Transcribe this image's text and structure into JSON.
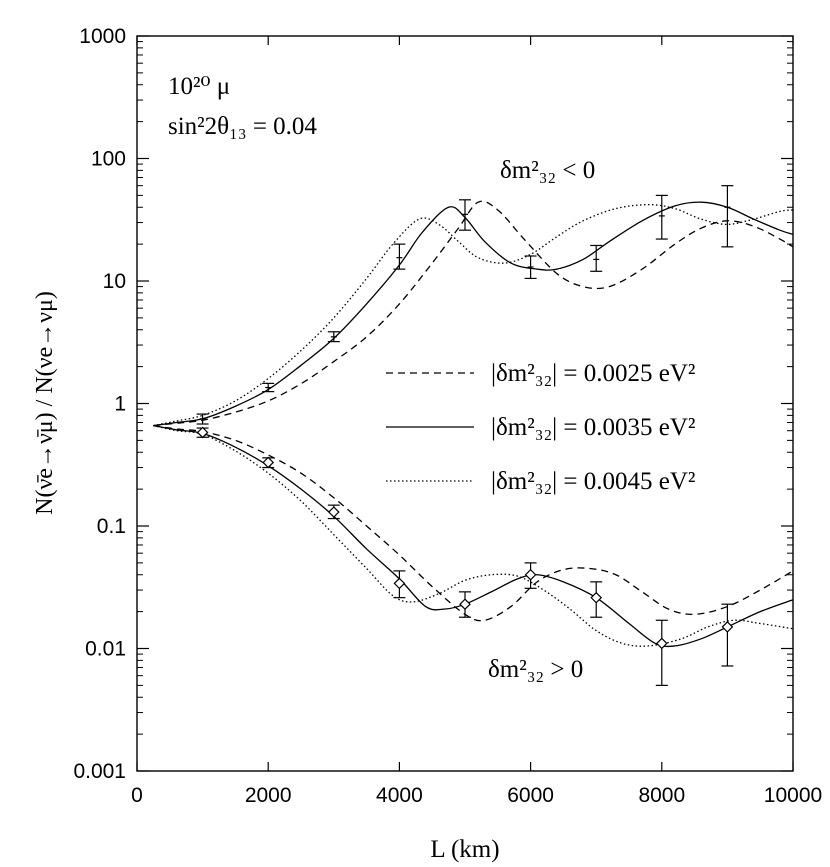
{
  "chart_data": {
    "type": "line",
    "xlabel": "L (km)",
    "ylabel": "N(ν̄e→ν̄μ) / N(νe→νμ)",
    "xlim": [
      0,
      10000
    ],
    "ylim": [
      0.001,
      1000
    ],
    "yscale": "log",
    "x_ticks": [
      0,
      2000,
      4000,
      6000,
      8000,
      10000
    ],
    "x_tick_labels": [
      "0",
      "2000",
      "4000",
      "6000",
      "8000",
      "10000"
    ],
    "y_ticks": [
      0.001,
      0.01,
      0.1,
      1,
      10,
      100,
      1000
    ],
    "y_tick_labels": [
      "0.001",
      "0.01",
      "0.1",
      "1",
      "10",
      "100",
      "1000"
    ],
    "annotations": {
      "muons": "10²⁰ μ",
      "mixing": "sin²2θ₁₃ = 0.04",
      "negative_hierarchy": "δm²₃₂ < 0",
      "positive_hierarchy": "δm²₃₂ > 0"
    },
    "legend": {
      "position": "center-right",
      "entries": [
        {
          "label": "|δm²₃₂| = 0.0025 eV²",
          "style": "dashed"
        },
        {
          "label": "|δm²₃₂| = 0.0035 eV²",
          "style": "solid"
        },
        {
          "label": "|δm²₃₂| = 0.0045 eV²",
          "style": "dotted"
        }
      ]
    },
    "series": [
      {
        "name": "0.0025 upper",
        "branch": "δm²₃₂ < 0",
        "style": "dashed",
        "points": [
          [
            250,
            0.66
          ],
          [
            600,
            0.69
          ],
          [
            1000,
            0.73
          ],
          [
            1500,
            0.85
          ],
          [
            2000,
            1.05
          ],
          [
            2500,
            1.45
          ],
          [
            3000,
            2.2
          ],
          [
            3500,
            3.5
          ],
          [
            4000,
            6.5
          ],
          [
            4500,
            14
          ],
          [
            4900,
            27
          ],
          [
            5200,
            44
          ],
          [
            5500,
            38
          ],
          [
            5900,
            22
          ],
          [
            6400,
            11.5
          ],
          [
            6800,
            9
          ],
          [
            7200,
            9
          ],
          [
            7700,
            12.5
          ],
          [
            8200,
            20
          ],
          [
            8600,
            27
          ],
          [
            9000,
            31
          ],
          [
            9400,
            28
          ],
          [
            9800,
            22
          ],
          [
            10000,
            19
          ]
        ]
      },
      {
        "name": "0.0035 upper",
        "branch": "δm²₃₂ < 0",
        "style": "solid",
        "points": [
          [
            250,
            0.66
          ],
          [
            600,
            0.7
          ],
          [
            1000,
            0.75
          ],
          [
            1500,
            0.95
          ],
          [
            2000,
            1.3
          ],
          [
            2500,
            2.05
          ],
          [
            3000,
            3.4
          ],
          [
            3500,
            6.5
          ],
          [
            4000,
            13.5
          ],
          [
            4350,
            25
          ],
          [
            4750,
            40
          ],
          [
            5000,
            33
          ],
          [
            5300,
            21
          ],
          [
            5700,
            14
          ],
          [
            6100,
            12.5
          ],
          [
            6400,
            12.5
          ],
          [
            6800,
            15
          ],
          [
            7200,
            21
          ],
          [
            7700,
            31
          ],
          [
            8200,
            41
          ],
          [
            8600,
            44
          ],
          [
            9000,
            40
          ],
          [
            9400,
            32
          ],
          [
            9800,
            26
          ],
          [
            10000,
            24
          ]
        ]
      },
      {
        "name": "0.0045 upper",
        "branch": "δm²₃₂ < 0",
        "style": "dotted",
        "points": [
          [
            250,
            0.66
          ],
          [
            600,
            0.72
          ],
          [
            1000,
            0.8
          ],
          [
            1500,
            1.05
          ],
          [
            2000,
            1.6
          ],
          [
            2500,
            2.7
          ],
          [
            3000,
            5
          ],
          [
            3500,
            10.5
          ],
          [
            3900,
            20
          ],
          [
            4300,
            32
          ],
          [
            4600,
            29
          ],
          [
            4900,
            21
          ],
          [
            5200,
            15.5
          ],
          [
            5600,
            14
          ],
          [
            6000,
            16.5
          ],
          [
            6400,
            23
          ],
          [
            6800,
            31
          ],
          [
            7300,
            39
          ],
          [
            7800,
            42
          ],
          [
            8200,
            39
          ],
          [
            8600,
            32
          ],
          [
            9000,
            29
          ],
          [
            9400,
            32
          ],
          [
            9800,
            37
          ],
          [
            10000,
            38
          ]
        ]
      },
      {
        "name": "0.0025 lower",
        "branch": "δm²₃₂ > 0",
        "style": "dashed",
        "points": [
          [
            250,
            0.66
          ],
          [
            600,
            0.62
          ],
          [
            1000,
            0.59
          ],
          [
            1500,
            0.5
          ],
          [
            2000,
            0.38
          ],
          [
            2500,
            0.27
          ],
          [
            3000,
            0.17
          ],
          [
            3500,
            0.1
          ],
          [
            4000,
            0.058
          ],
          [
            4500,
            0.032
          ],
          [
            5000,
            0.019
          ],
          [
            5300,
            0.017
          ],
          [
            5700,
            0.022
          ],
          [
            6100,
            0.035
          ],
          [
            6500,
            0.044
          ],
          [
            6900,
            0.045
          ],
          [
            7300,
            0.04
          ],
          [
            7700,
            0.029
          ],
          [
            8100,
            0.021
          ],
          [
            8500,
            0.019
          ],
          [
            9000,
            0.022
          ],
          [
            9500,
            0.03
          ],
          [
            10000,
            0.043
          ]
        ]
      },
      {
        "name": "0.0035 lower",
        "branch": "δm²₃₂ > 0",
        "style": "solid",
        "points": [
          [
            250,
            0.66
          ],
          [
            600,
            0.61
          ],
          [
            1000,
            0.57
          ],
          [
            1500,
            0.44
          ],
          [
            2000,
            0.31
          ],
          [
            2500,
            0.2
          ],
          [
            3000,
            0.12
          ],
          [
            3500,
            0.065
          ],
          [
            4000,
            0.037
          ],
          [
            4400,
            0.022
          ],
          [
            4700,
            0.021
          ],
          [
            5000,
            0.023
          ],
          [
            5400,
            0.029
          ],
          [
            5800,
            0.037
          ],
          [
            6100,
            0.04
          ],
          [
            6500,
            0.035
          ],
          [
            7000,
            0.026
          ],
          [
            7500,
            0.016
          ],
          [
            7900,
            0.011
          ],
          [
            8200,
            0.0105
          ],
          [
            8600,
            0.012
          ],
          [
            9000,
            0.015
          ],
          [
            9500,
            0.02
          ],
          [
            10000,
            0.025
          ]
        ]
      },
      {
        "name": "0.0045 lower",
        "branch": "δm²₃₂ > 0",
        "style": "dotted",
        "points": [
          [
            250,
            0.66
          ],
          [
            600,
            0.6
          ],
          [
            1000,
            0.56
          ],
          [
            1500,
            0.41
          ],
          [
            2000,
            0.27
          ],
          [
            2500,
            0.16
          ],
          [
            3000,
            0.085
          ],
          [
            3500,
            0.045
          ],
          [
            3900,
            0.027
          ],
          [
            4200,
            0.024
          ],
          [
            4600,
            0.028
          ],
          [
            5000,
            0.036
          ],
          [
            5400,
            0.04
          ],
          [
            5800,
            0.039
          ],
          [
            6200,
            0.03
          ],
          [
            6600,
            0.021
          ],
          [
            7000,
            0.014
          ],
          [
            7400,
            0.011
          ],
          [
            7800,
            0.0105
          ],
          [
            8300,
            0.012
          ],
          [
            8700,
            0.015
          ],
          [
            9100,
            0.017
          ],
          [
            9500,
            0.016
          ],
          [
            10000,
            0.0145
          ]
        ]
      }
    ],
    "error_bars": [
      {
        "branch": "δm²₃₂ < 0",
        "marker": "none",
        "points": [
          [
            1000,
            0.75,
            0.68,
            0.82
          ],
          [
            2000,
            1.35,
            1.25,
            1.46
          ],
          [
            3000,
            3.5,
            3.2,
            3.85
          ],
          [
            4000,
            15.5,
            12.5,
            20
          ],
          [
            5000,
            35,
            26,
            46
          ],
          [
            6000,
            13,
            10.5,
            16
          ],
          [
            7000,
            15,
            12,
            19.5
          ],
          [
            8000,
            34,
            22,
            50
          ],
          [
            9000,
            40,
            19,
            60
          ]
        ]
      },
      {
        "branch": "δm²₃₂ > 0",
        "marker": "diamond",
        "points": [
          [
            1000,
            0.58,
            0.53,
            0.63
          ],
          [
            2000,
            0.33,
            0.3,
            0.36
          ],
          [
            3000,
            0.13,
            0.115,
            0.148
          ],
          [
            4000,
            0.034,
            0.026,
            0.043
          ],
          [
            5000,
            0.023,
            0.018,
            0.029
          ],
          [
            6000,
            0.04,
            0.031,
            0.05
          ],
          [
            7000,
            0.026,
            0.018,
            0.035
          ],
          [
            8000,
            0.011,
            0.005,
            0.017
          ],
          [
            9000,
            0.015,
            0.0072,
            0.023
          ]
        ]
      }
    ]
  }
}
